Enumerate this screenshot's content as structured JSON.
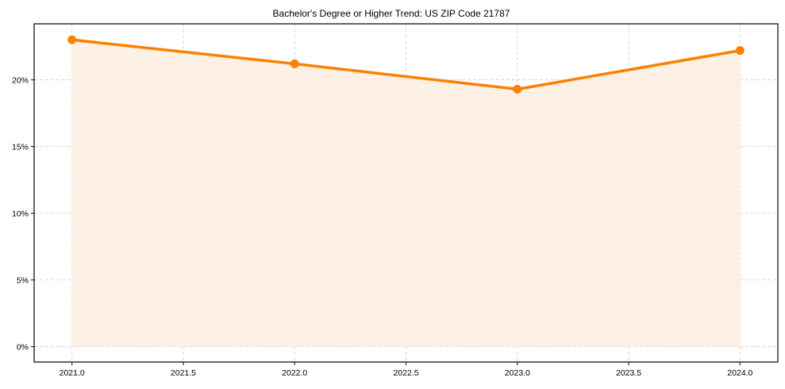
{
  "chart_data": {
    "type": "area",
    "title": "Bachelor's Degree or Higher Trend: US ZIP Code 21787",
    "xlabel": "",
    "ylabel": "",
    "x": [
      2021,
      2022,
      2023,
      2024
    ],
    "series": [
      {
        "name": "Bachelor's Degree or Higher",
        "values": [
          23.0,
          21.2,
          19.3,
          22.2
        ],
        "unit": "%"
      }
    ],
    "x_ticks": [
      "2021.0",
      "2021.5",
      "2022.0",
      "2022.5",
      "2023.0",
      "2023.5",
      "2024.0"
    ],
    "y_ticks": [
      "0%",
      "5%",
      "10%",
      "15%",
      "20%"
    ],
    "xlim": [
      2020.83,
      2024.17
    ],
    "ylim": [
      -1.15,
      24.2
    ],
    "grid": true,
    "legend": false,
    "colors": {
      "line": "#ff8000",
      "fill": "#fdf0e2",
      "grid": "#cccccc"
    }
  }
}
